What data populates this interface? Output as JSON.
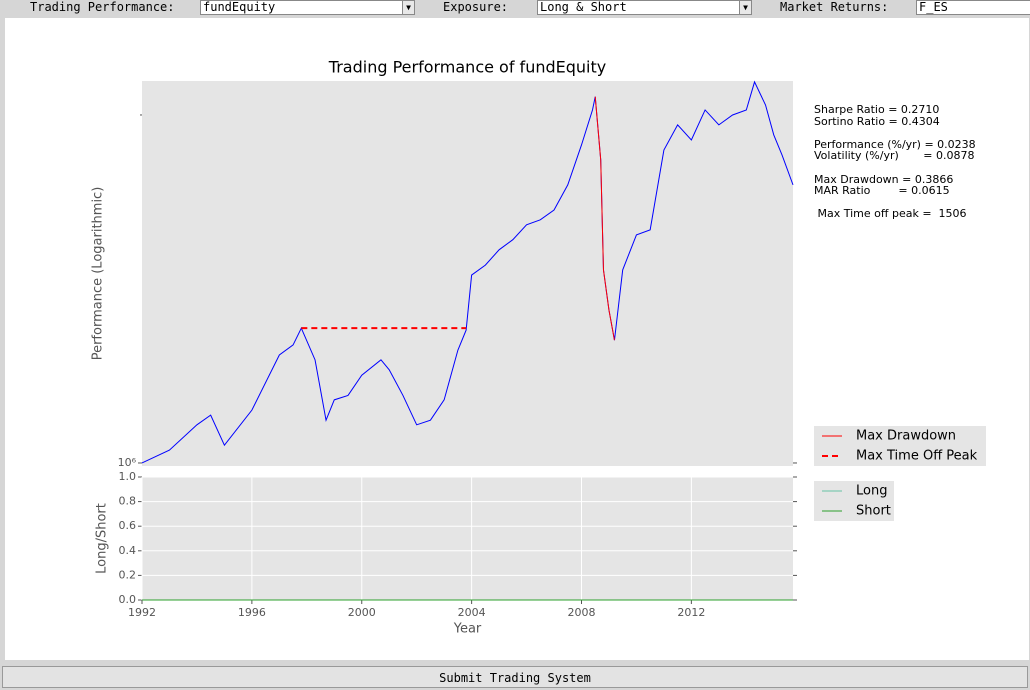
{
  "toolbar": {
    "performance_label": "Trading Performance:",
    "performance_value": "fundEquity",
    "exposure_label": "Exposure:",
    "exposure_value": "Long & Short",
    "market_label": "Market Returns:",
    "market_value": "F_ES"
  },
  "chart_data": [
    {
      "type": "line",
      "title": "Trading Performance of fundEquity",
      "y_label": "Performance (Logarithmic)",
      "log_scale_y": true,
      "grid": false,
      "legend_location": "outside lower right",
      "xlim": [
        1992,
        2015.7
      ],
      "ylim": [
        994000,
        2140000
      ],
      "yticks": [
        {
          "value": 1000000,
          "label": "10⁶"
        }
      ],
      "yminor_ticks": [
        2000000
      ],
      "annotations": [
        "Sharpe Ratio = 0.2710",
        "Sortino Ratio = 0.4304",
        "Performance (%/yr) = 0.0238",
        "Volatility (%/yr)       = 0.0878",
        "Max Drawdown = 0.3866",
        "MAR Ratio        = 0.0615",
        " Max Time off peak =  1506"
      ],
      "series": [
        {
          "color": "#0000ff",
          "dashed": false,
          "x": [
            1992,
            1993,
            1994,
            1994.5,
            1995,
            1996,
            1997,
            1997.5,
            1997.8,
            1998.3,
            1998.7,
            1999,
            1999.5,
            2000,
            2000.7,
            2001,
            2001.5,
            2002,
            2002.5,
            2003,
            2003.5,
            2003.8,
            2004,
            2004.5,
            2005,
            2005.5,
            2006,
            2006.5,
            2007,
            2007.5,
            2008,
            2008.4,
            2008.5,
            2008.7,
            2008.8,
            2009,
            2009.2,
            2009.5,
            2010,
            2010.5,
            2011,
            2011.5,
            2012,
            2012.5,
            2013,
            2013.5,
            2014,
            2014.3,
            2014.7,
            2015,
            2015.3,
            2015.7
          ],
          "values": [
            1000000,
            1026000,
            1079000,
            1100000,
            1036000,
            1111000,
            1240000,
            1265000,
            1308000,
            1228000,
            1089000,
            1134000,
            1144000,
            1191000,
            1228000,
            1204000,
            1144000,
            1079000,
            1089000,
            1134000,
            1252000,
            1303000,
            1454000,
            1483000,
            1529000,
            1560000,
            1607000,
            1623000,
            1655000,
            1740000,
            1884000,
            2020000,
            2074000,
            1829000,
            1469000,
            1356000,
            1277000,
            1469000,
            1575000,
            1591000,
            1865000,
            1961000,
            1903000,
            2020000,
            1961000,
            2000000,
            2020000,
            2136000,
            2040000,
            1922000,
            1847000,
            1740000
          ]
        },
        {
          "name": "Max Drawdown",
          "color": "#ff0000",
          "dashed": false,
          "x": [
            2008.5,
            2008.7,
            2008.8,
            2009,
            2009.2
          ],
          "values": [
            2074000,
            1829000,
            1469000,
            1356000,
            1277000
          ]
        },
        {
          "name": "Max Time Off Peak",
          "color": "#ff0000",
          "dashed": true,
          "x": [
            1997.8,
            2003.8
          ],
          "values": [
            1308000,
            1308000
          ]
        }
      ]
    },
    {
      "type": "line",
      "y_label": "Long/Short",
      "x_label": "Year",
      "log_scale_y": false,
      "grid": true,
      "legend_location": "outside upper right",
      "xlim": [
        1992,
        2015.7
      ],
      "ylim": [
        0,
        1
      ],
      "xticks": [
        1992,
        1996,
        2000,
        2004,
        2008,
        2012
      ],
      "yticks": [
        {
          "value": 0,
          "label": "0.0"
        },
        {
          "value": 0.2,
          "label": "0.2"
        },
        {
          "value": 0.4,
          "label": "0.4"
        },
        {
          "value": 0.6,
          "label": "0.6"
        },
        {
          "value": 0.8,
          "label": "0.8"
        },
        {
          "value": 1,
          "label": "1.0"
        }
      ],
      "series": [
        {
          "name": "Long",
          "color": "#66c2a5",
          "dashed": false,
          "x": [
            1992,
            2015.7
          ],
          "values": [
            0,
            0
          ]
        },
        {
          "name": "Short",
          "color": "#2ca02c",
          "dashed": false,
          "x": [
            1992,
            2015.7
          ],
          "values": [
            0,
            0
          ]
        }
      ]
    }
  ],
  "submit_button": "Submit Trading System"
}
